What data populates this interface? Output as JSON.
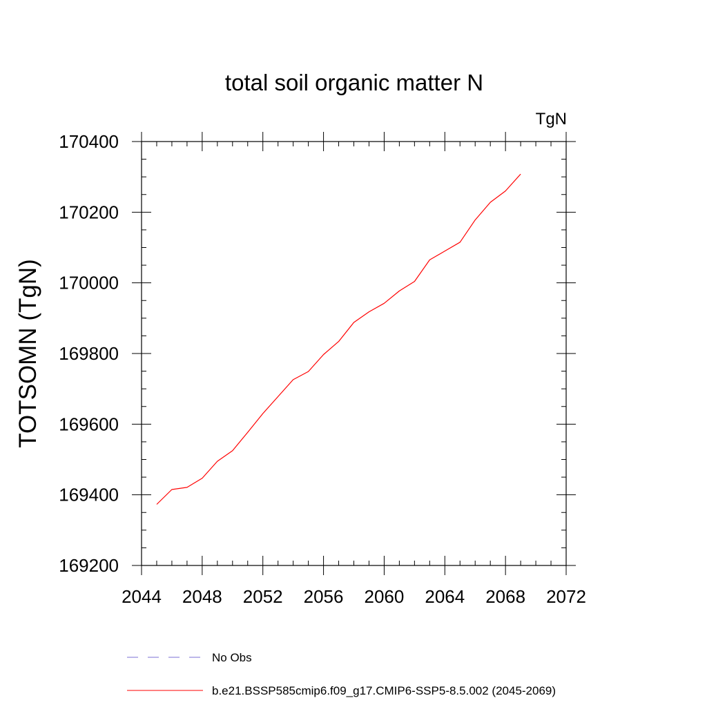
{
  "chart_data": {
    "type": "line",
    "title": "total soil organic matter N",
    "units_label": "TgN",
    "ylabel": "TOTSOMN  (TgN)",
    "xlabel": "",
    "xlim": [
      2044,
      2072
    ],
    "ylim": [
      169200,
      170400
    ],
    "x_ticks": [
      2044,
      2048,
      2052,
      2056,
      2060,
      2064,
      2068,
      2072
    ],
    "y_ticks": [
      169200,
      169400,
      169600,
      169800,
      170000,
      170200,
      170400
    ],
    "x_minor_step": 1,
    "y_minor_step": 50,
    "grid": false,
    "series": [
      {
        "name": "b.e21.BSSP585cmip6.f09_g17.CMIP6-SSP5-8.5.002 (2045-2069)",
        "color": "#ff0000",
        "dash": "solid",
        "x": [
          2045,
          2046,
          2047,
          2048,
          2049,
          2050,
          2051,
          2052,
          2053,
          2054,
          2055,
          2056,
          2057,
          2058,
          2059,
          2060,
          2061,
          2062,
          2063,
          2064,
          2065,
          2066,
          2067,
          2068,
          2069
        ],
        "values": [
          169373,
          169415,
          169421,
          169447,
          169495,
          169525,
          169577,
          169630,
          169678,
          169726,
          169749,
          169797,
          169834,
          169888,
          169918,
          169942,
          169977,
          170004,
          170065,
          170090,
          170115,
          170178,
          170228,
          170260,
          170308
        ]
      }
    ],
    "legend": {
      "placement": "bottom",
      "entries": [
        {
          "label": "No Obs",
          "color": "#7b6fd6",
          "dash": "dashed"
        },
        {
          "label": "b.e21.BSSP585cmip6.f09_g17.CMIP6-SSP5-8.5.002 (2045-2069)",
          "color": "#ff0000",
          "dash": "solid"
        }
      ]
    }
  }
}
